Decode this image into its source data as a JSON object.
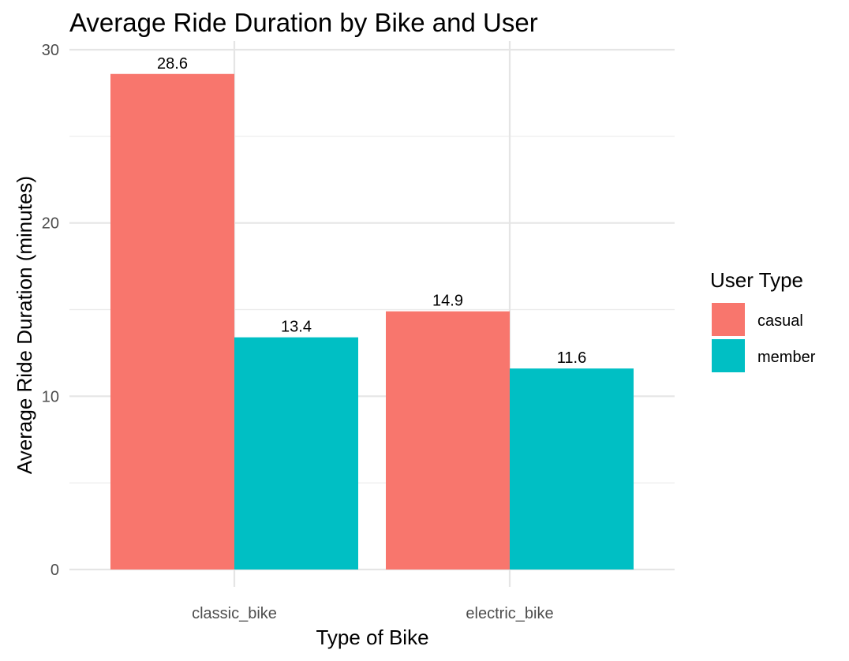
{
  "chart_data": {
    "type": "bar",
    "title": "Average Ride Duration by Bike and User",
    "xlabel": "Type of Bike",
    "ylabel": "Average Ride Duration (minutes)",
    "categories": [
      "classic_bike",
      "electric_bike"
    ],
    "series": [
      {
        "name": "casual",
        "values": [
          28.6,
          14.9
        ],
        "color": "#F8766D"
      },
      {
        "name": "member",
        "values": [
          13.4,
          11.6
        ],
        "color": "#00BFC4"
      }
    ],
    "data_labels": [
      [
        "28.6",
        "14.9"
      ],
      [
        "13.4",
        "11.6"
      ]
    ],
    "ylim": [
      0,
      30
    ],
    "y_ticks": [
      "0",
      "10",
      "20",
      "30"
    ],
    "grid": true,
    "legend": {
      "title": "User Type",
      "position": "right"
    }
  }
}
